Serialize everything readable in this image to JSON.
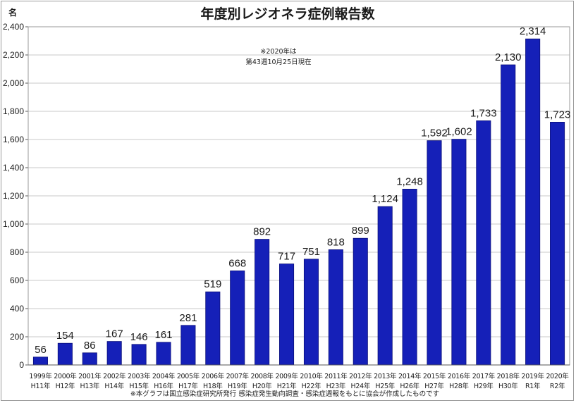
{
  "chart_data": {
    "type": "bar",
    "title": "年度別レジオネラ症例報告数",
    "unit_label": "名",
    "categories": [
      "1999年",
      "2000年",
      "2001年",
      "2002年",
      "2003年",
      "2004年",
      "2005年",
      "2006年",
      "2007年",
      "2008年",
      "2009年",
      "2010年",
      "2011年",
      "2012年",
      "2013年",
      "2014年",
      "2015年",
      "2016年",
      "2017年",
      "2018年",
      "2019年",
      "2020年"
    ],
    "era_labels": [
      "H11年",
      "H12年",
      "H13年",
      "H14年",
      "H15年",
      "H16年",
      "H17年",
      "H18年",
      "H19年",
      "H20年",
      "H21年",
      "H22年",
      "H23年",
      "H24年",
      "H25年",
      "H26年",
      "H27年",
      "H28年",
      "H29年",
      "H30年",
      "R1年",
      "R2年"
    ],
    "values": [
      56,
      154,
      86,
      167,
      146,
      161,
      281,
      519,
      668,
      892,
      717,
      751,
      818,
      899,
      1124,
      1248,
      1592,
      1602,
      1733,
      2130,
      2314,
      1723
    ],
    "value_labels": [
      "56",
      "154",
      "86",
      "167",
      "146",
      "161",
      "281",
      "519",
      "668",
      "892",
      "717",
      "751",
      "818",
      "899",
      "1,124",
      "1,248",
      "1,592",
      "1,602",
      "1,733",
      "2,130",
      "2,314",
      "1,723"
    ],
    "highlight_index": 21,
    "ylim": [
      0,
      2400
    ],
    "yticks": [
      0,
      200,
      400,
      600,
      800,
      1000,
      1200,
      1400,
      1600,
      1800,
      2000,
      2200,
      2400
    ],
    "ytick_labels": [
      "0",
      "200",
      "400",
      "600",
      "800",
      "1,000",
      "1,200",
      "1,400",
      "1,600",
      "1,800",
      "2,000",
      "2,200",
      "2,400"
    ],
    "grid": "horizontal",
    "annotation": [
      "※2020年は",
      "第43週10月25日現在"
    ],
    "footnote": "※本グラフは国立感染症研究所発行 感染症発生動向調査・感染症週報をもとに協会が作成したものです",
    "colors": {
      "bar": "#1520b8",
      "bar_edge": "#0a0f7a",
      "highlight_label": "#e02020",
      "grid": "#c8c8c8"
    }
  }
}
